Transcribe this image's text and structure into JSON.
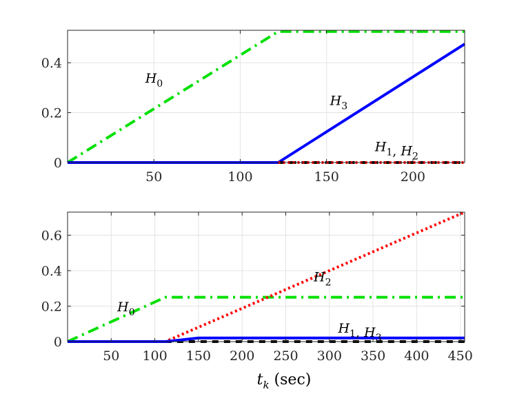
{
  "chart_data": [
    {
      "type": "line",
      "xlim": [
        0,
        230
      ],
      "ylim": [
        0,
        0.53
      ],
      "xticks": [
        50,
        100,
        150,
        200
      ],
      "yticks": [
        0,
        0.2,
        0.4
      ],
      "grid": true,
      "xlabel": "",
      "ylabel": "",
      "series": [
        {
          "name": "H_0",
          "color": "#00e000",
          "style": "dashdot",
          "x": [
            0,
            122,
            230
          ],
          "y": [
            0,
            0.525,
            0.525
          ]
        },
        {
          "name": "H_3",
          "color": "#0000ff",
          "style": "solid",
          "x": [
            0,
            122,
            230
          ],
          "y": [
            0,
            0,
            0.475
          ]
        },
        {
          "name": "H_1",
          "color": "#000000",
          "style": "dashed",
          "x": [
            122,
            230
          ],
          "y": [
            0,
            0
          ]
        },
        {
          "name": "H_2",
          "color": "#ff0000",
          "style": "dotted",
          "x": [
            122,
            230
          ],
          "y": [
            0,
            0
          ]
        }
      ],
      "annotations": [
        {
          "parts": [
            [
              "H",
              "0"
            ]
          ],
          "x": 45,
          "y": 0.32
        },
        {
          "parts": [
            [
              "H",
              "3"
            ]
          ],
          "x": 152,
          "y": 0.23
        },
        {
          "parts": [
            [
              "H",
              "1"
            ],
            [
              "H",
              "2"
            ]
          ],
          "x": 178,
          "y": 0.045
        }
      ]
    },
    {
      "type": "line",
      "xlim": [
        0,
        455
      ],
      "ylim": [
        0,
        0.73
      ],
      "xticks": [
        50,
        100,
        150,
        200,
        250,
        300,
        350,
        400,
        450
      ],
      "yticks": [
        0,
        0.2,
        0.4,
        0.6
      ],
      "grid": true,
      "xlabel": "t_k (sec)",
      "ylabel": "",
      "series": [
        {
          "name": "H_0",
          "color": "#00e000",
          "style": "dashdot",
          "x": [
            0,
            112,
            455
          ],
          "y": [
            0,
            0.25,
            0.25
          ]
        },
        {
          "name": "H_2",
          "color": "#ff0000",
          "style": "dotted",
          "x": [
            0,
            112,
            455
          ],
          "y": [
            0,
            0,
            0.73
          ]
        },
        {
          "name": "H_1",
          "color": "#000000",
          "style": "dashed",
          "x": [
            112,
            455
          ],
          "y": [
            0,
            0
          ]
        },
        {
          "name": "H_3",
          "color": "#0000ff",
          "style": "solid",
          "x": [
            0,
            112,
            150,
            455
          ],
          "y": [
            0,
            0,
            0.02,
            0.02
          ]
        }
      ],
      "annotations": [
        {
          "parts": [
            [
              "H",
              "0"
            ]
          ],
          "x": 57,
          "y": 0.17
        },
        {
          "parts": [
            [
              "H",
              "2"
            ]
          ],
          "x": 282,
          "y": 0.34
        },
        {
          "parts": [
            [
              "H",
              "1"
            ],
            [
              "H",
              "3"
            ]
          ],
          "x": 310,
          "y": 0.05
        }
      ]
    }
  ],
  "xlabel_parts": {
    "var": "t",
    "sub": "k",
    "unit": "(sec)"
  }
}
